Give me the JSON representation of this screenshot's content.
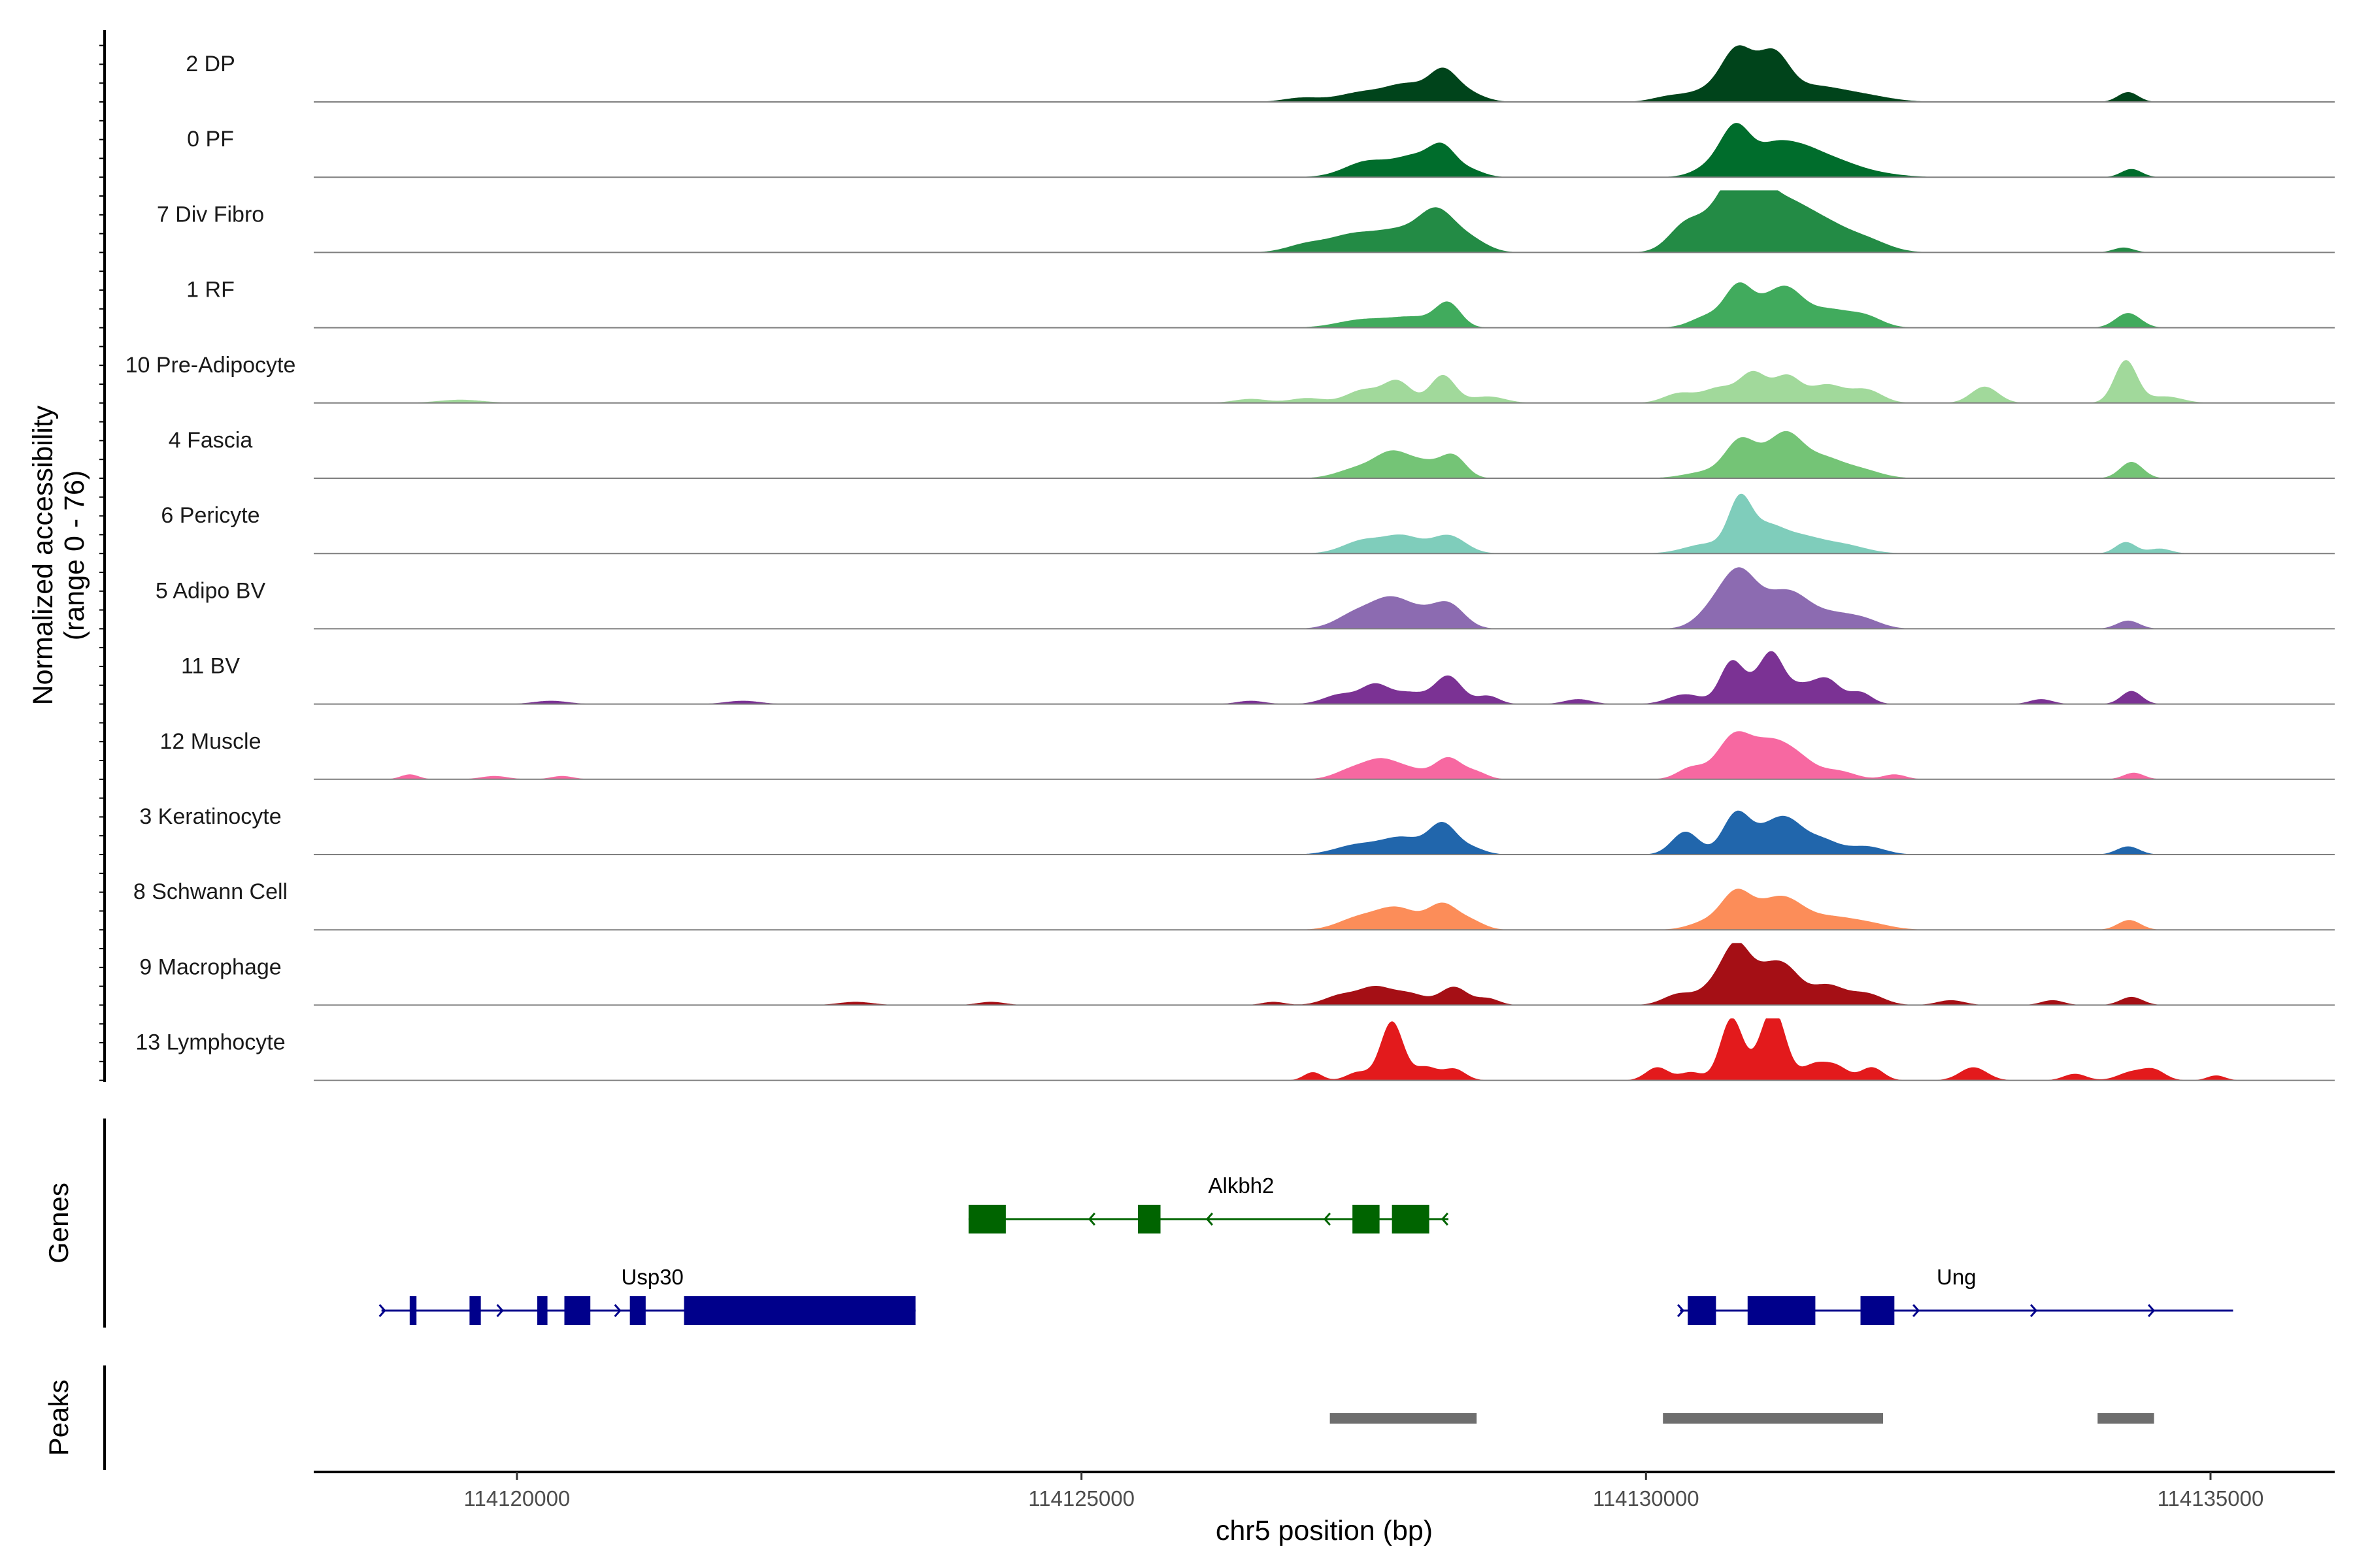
{
  "chart_data": {
    "type": "area",
    "title": "",
    "xlabel": "chr5 position (bp)",
    "ylabel": "Normalized accessibility\n(range 0 - 76)",
    "xlim": [
      114118200,
      114136100
    ],
    "ylim": [
      0,
      76
    ],
    "x_ticks": [
      114120000,
      114125000,
      114130000,
      114135000
    ],
    "x_tick_labels": [
      "114120000",
      "114125000",
      "114130000",
      "114135000"
    ],
    "genes_title": "Genes",
    "peaks_title": "Peaks",
    "tracks": [
      {
        "name": "2 DP",
        "color": "#00441b",
        "peaks": [
          [
            114126950,
            5,
            160
          ],
          [
            114127500,
            12,
            220
          ],
          [
            114127900,
            20,
            180
          ],
          [
            114128200,
            32,
            120
          ],
          [
            114128400,
            12,
            150
          ],
          [
            114130200,
            6,
            150
          ],
          [
            114130600,
            16,
            200
          ],
          [
            114130800,
            48,
            130
          ],
          [
            114131000,
            22,
            150
          ],
          [
            114131150,
            40,
            130
          ],
          [
            114131450,
            18,
            250
          ],
          [
            114131900,
            8,
            250
          ],
          [
            114134270,
            12,
            90
          ]
        ]
      },
      {
        "name": "0 PF",
        "color": "#006d2c",
        "peaks": [
          [
            114127550,
            20,
            210
          ],
          [
            114127950,
            22,
            160
          ],
          [
            114128200,
            34,
            120
          ],
          [
            114128450,
            8,
            120
          ],
          [
            114130600,
            14,
            160
          ],
          [
            114130800,
            56,
            130
          ],
          [
            114131100,
            28,
            150
          ],
          [
            114131350,
            30,
            180
          ],
          [
            114131650,
            16,
            200
          ],
          [
            114131950,
            6,
            250
          ],
          [
            114134300,
            10,
            90
          ]
        ]
      },
      {
        "name": "7 Div Fibro",
        "color": "#238b45",
        "peaks": [
          [
            114127000,
            10,
            180
          ],
          [
            114127400,
            20,
            200
          ],
          [
            114127800,
            24,
            200
          ],
          [
            114128150,
            48,
            160
          ],
          [
            114128450,
            14,
            150
          ],
          [
            114130350,
            32,
            150
          ],
          [
            114130700,
            50,
            180
          ],
          [
            114130900,
            72,
            160
          ],
          [
            114131200,
            50,
            200
          ],
          [
            114131550,
            34,
            220
          ],
          [
            114131950,
            14,
            200
          ],
          [
            114134230,
            6,
            90
          ]
        ]
      },
      {
        "name": "1 RF",
        "color": "#41ab5d",
        "peaks": [
          [
            114127500,
            10,
            230
          ],
          [
            114127950,
            12,
            200
          ],
          [
            114128250,
            28,
            110
          ],
          [
            114130550,
            14,
            150
          ],
          [
            114130820,
            48,
            120
          ],
          [
            114131050,
            20,
            130
          ],
          [
            114131250,
            40,
            140
          ],
          [
            114131600,
            22,
            200
          ],
          [
            114131950,
            12,
            150
          ],
          [
            114134270,
            18,
            110
          ]
        ]
      },
      {
        "name": "10 Pre-Adipocyte",
        "color": "#a1d99b",
        "peaks": [
          [
            114119500,
            4,
            200
          ],
          [
            114126500,
            5,
            150
          ],
          [
            114127000,
            6,
            150
          ],
          [
            114127500,
            16,
            150
          ],
          [
            114127800,
            26,
            120
          ],
          [
            114128200,
            34,
            110
          ],
          [
            114128600,
            8,
            150
          ],
          [
            114130300,
            12,
            140
          ],
          [
            114130650,
            18,
            140
          ],
          [
            114130950,
            36,
            120
          ],
          [
            114131250,
            32,
            120
          ],
          [
            114131600,
            22,
            150
          ],
          [
            114131950,
            16,
            140
          ],
          [
            114133000,
            20,
            120
          ],
          [
            114134250,
            52,
            100
          ],
          [
            114134600,
            8,
            150
          ]
        ]
      },
      {
        "name": "4 Fascia",
        "color": "#74c476",
        "peaks": [
          [
            114127450,
            12,
            180
          ],
          [
            114127750,
            28,
            150
          ],
          [
            114128050,
            18,
            160
          ],
          [
            114128300,
            24,
            110
          ],
          [
            114130550,
            8,
            200
          ],
          [
            114130830,
            40,
            130
          ],
          [
            114131050,
            18,
            150
          ],
          [
            114131250,
            44,
            140
          ],
          [
            114131550,
            24,
            180
          ],
          [
            114131900,
            10,
            180
          ],
          [
            114134300,
            20,
            100
          ]
        ]
      },
      {
        "name": "6 Pericyte",
        "color": "#7fcdbb",
        "peaks": [
          [
            114127500,
            16,
            180
          ],
          [
            114127850,
            20,
            160
          ],
          [
            114128250,
            22,
            150
          ],
          [
            114130550,
            12,
            200
          ],
          [
            114130830,
            58,
            100
          ],
          [
            114131050,
            28,
            150
          ],
          [
            114131350,
            20,
            200
          ],
          [
            114131750,
            10,
            200
          ],
          [
            114134250,
            14,
            90
          ],
          [
            114134550,
            6,
            100
          ]
        ]
      },
      {
        "name": "5 Adipo BV",
        "color": "#8c6bb1",
        "peaks": [
          [
            114127450,
            20,
            180
          ],
          [
            114127750,
            32,
            160
          ],
          [
            114128000,
            14,
            140
          ],
          [
            114128250,
            30,
            140
          ],
          [
            114130600,
            22,
            150
          ],
          [
            114130830,
            64,
            150
          ],
          [
            114131100,
            20,
            150
          ],
          [
            114131300,
            34,
            160
          ],
          [
            114131650,
            18,
            200
          ],
          [
            114131950,
            8,
            150
          ],
          [
            114134270,
            10,
            100
          ]
        ]
      },
      {
        "name": "11 BV",
        "color": "#7b3294",
        "peaks": [
          [
            114120300,
            4,
            150
          ],
          [
            114122000,
            4,
            150
          ],
          [
            114126500,
            4,
            120
          ],
          [
            114127300,
            12,
            150
          ],
          [
            114127600,
            22,
            120
          ],
          [
            114127900,
            14,
            150
          ],
          [
            114128250,
            34,
            120
          ],
          [
            114128600,
            10,
            100
          ],
          [
            114129400,
            6,
            120
          ],
          [
            114130350,
            12,
            150
          ],
          [
            114130750,
            46,
            100
          ],
          [
            114130950,
            22,
            130
          ],
          [
            114131120,
            52,
            100
          ],
          [
            114131350,
            20,
            120
          ],
          [
            114131600,
            30,
            120
          ],
          [
            114131900,
            14,
            100
          ],
          [
            114133500,
            6,
            100
          ],
          [
            114134300,
            16,
            90
          ]
        ]
      },
      {
        "name": "12 Muscle",
        "color": "#f768a1",
        "peaks": [
          [
            114119050,
            6,
            80
          ],
          [
            114119800,
            4,
            120
          ],
          [
            114120400,
            4,
            100
          ],
          [
            114127400,
            12,
            150
          ],
          [
            114127650,
            20,
            140
          ],
          [
            114127900,
            12,
            150
          ],
          [
            114128250,
            26,
            120
          ],
          [
            114128500,
            8,
            100
          ],
          [
            114130400,
            14,
            120
          ],
          [
            114130780,
            52,
            150
          ],
          [
            114131100,
            40,
            160
          ],
          [
            114131350,
            22,
            150
          ],
          [
            114131700,
            10,
            150
          ],
          [
            114132200,
            6,
            100
          ],
          [
            114134320,
            8,
            90
          ]
        ]
      },
      {
        "name": "3 Keratinocyte",
        "color": "#2166ac",
        "peaks": [
          [
            114127450,
            12,
            200
          ],
          [
            114127850,
            20,
            180
          ],
          [
            114128200,
            36,
            120
          ],
          [
            114128450,
            8,
            120
          ],
          [
            114130350,
            28,
            120
          ],
          [
            114130800,
            50,
            120
          ],
          [
            114131050,
            20,
            130
          ],
          [
            114131250,
            38,
            140
          ],
          [
            114131550,
            18,
            150
          ],
          [
            114131950,
            10,
            160
          ],
          [
            114134270,
            10,
            100
          ]
        ]
      },
      {
        "name": "8 Schwann Cell",
        "color": "#fc8d59",
        "peaks": [
          [
            114127450,
            14,
            180
          ],
          [
            114127800,
            26,
            180
          ],
          [
            114128200,
            30,
            130
          ],
          [
            114128450,
            10,
            120
          ],
          [
            114130550,
            10,
            160
          ],
          [
            114130800,
            42,
            130
          ],
          [
            114131050,
            18,
            150
          ],
          [
            114131250,
            30,
            160
          ],
          [
            114131600,
            14,
            200
          ],
          [
            114131950,
            8,
            200
          ],
          [
            114134280,
            12,
            100
          ]
        ]
      },
      {
        "name": "9 Macrophage",
        "color": "#a50f15",
        "peaks": [
          [
            114123000,
            4,
            150
          ],
          [
            114124200,
            4,
            120
          ],
          [
            114126700,
            4,
            100
          ],
          [
            114127300,
            12,
            150
          ],
          [
            114127600,
            20,
            140
          ],
          [
            114127900,
            14,
            150
          ],
          [
            114128300,
            22,
            120
          ],
          [
            114128600,
            8,
            100
          ],
          [
            114130300,
            14,
            140
          ],
          [
            114130600,
            20,
            120
          ],
          [
            114130800,
            68,
            120
          ],
          [
            114131050,
            34,
            130
          ],
          [
            114131250,
            38,
            130
          ],
          [
            114131600,
            24,
            150
          ],
          [
            114131950,
            14,
            150
          ],
          [
            114132700,
            6,
            120
          ],
          [
            114133600,
            6,
            100
          ],
          [
            114134300,
            10,
            100
          ]
        ]
      },
      {
        "name": "13 Lymphocyte",
        "color": "#e31a1c",
        "peaks": [
          [
            114127050,
            10,
            80
          ],
          [
            114127450,
            10,
            100
          ],
          [
            114127750,
            72,
            100
          ],
          [
            114128050,
            16,
            100
          ],
          [
            114128300,
            14,
            100
          ],
          [
            114130100,
            16,
            100
          ],
          [
            114130400,
            10,
            100
          ],
          [
            114130760,
            76,
            100
          ],
          [
            114131050,
            30,
            100
          ],
          [
            114131150,
            68,
            100
          ],
          [
            114131500,
            20,
            120
          ],
          [
            114131700,
            14,
            100
          ],
          [
            114132000,
            16,
            100
          ],
          [
            114132900,
            16,
            120
          ],
          [
            114133800,
            8,
            100
          ],
          [
            114134300,
            10,
            120
          ],
          [
            114134500,
            12,
            100
          ],
          [
            114135050,
            6,
            80
          ]
        ]
      }
    ],
    "genes": [
      {
        "name": "Alkbh2",
        "strand": "-",
        "start": 114124000,
        "end": 114128250,
        "row": 0,
        "color": "#006400",
        "exons": [
          [
            114124000,
            114124330
          ],
          [
            114125500,
            114125700
          ],
          [
            114127400,
            114127640
          ],
          [
            114127750,
            114128080
          ]
        ]
      },
      {
        "name": "Usp30",
        "strand": "+",
        "start": 114118800,
        "end": 114123530,
        "row": 1,
        "color": "#00008b",
        "exons": [
          [
            114119050,
            114119110
          ],
          [
            114119580,
            114119680
          ],
          [
            114120180,
            114120270
          ],
          [
            114120420,
            114120650
          ],
          [
            114121000,
            114121140
          ],
          [
            114121480,
            114123530
          ]
        ]
      },
      {
        "name": "Ung",
        "strand": "+",
        "start": 114130300,
        "end": 114135200,
        "row": 1,
        "color": "#00008b",
        "exons": [
          [
            114130370,
            114130620
          ],
          [
            114130900,
            114131500
          ],
          [
            114131900,
            114132200
          ]
        ]
      }
    ],
    "peaks": [
      [
        114127200,
        114128500
      ],
      [
        114130150,
        114132100
      ],
      [
        114134000,
        114134500
      ]
    ]
  }
}
